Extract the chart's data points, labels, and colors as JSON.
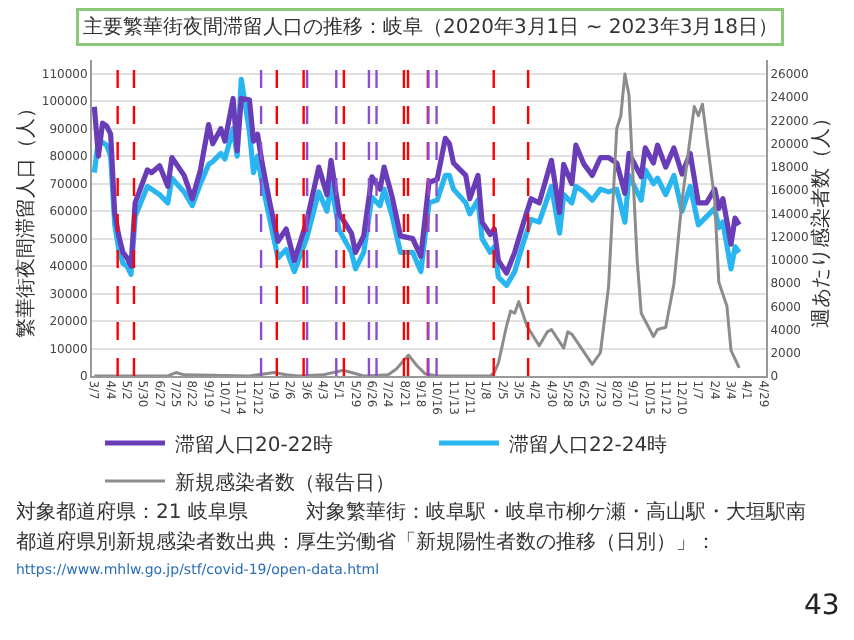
{
  "chart_data": {
    "type": "line",
    "title": "主要繁華街夜間滞留人口の推移：岐阜（2020年3月1日 ~ 2023年3月18日）",
    "ylabel": "繁華街夜間滞留人口（人）",
    "y2label": "週あたり感染者数（人）",
    "x": [
      "2020-03-07",
      "2020-03-14",
      "2020-03-21",
      "2020-03-28",
      "2020-04-04",
      "2020-04-11",
      "2020-04-18",
      "2020-04-25",
      "2020-05-02",
      "2020-05-09",
      "2020-05-16",
      "2020-06-06",
      "2020-06-13",
      "2020-06-27",
      "2020-07-11",
      "2020-07-18",
      "2020-08-08",
      "2020-08-22",
      "2020-09-05",
      "2020-09-19",
      "2020-09-26",
      "2020-10-10",
      "2020-10-17",
      "2020-10-31",
      "2020-11-07",
      "2020-11-14",
      "2020-11-28",
      "2020-12-05",
      "2020-12-12",
      "2020-12-19",
      "2021-01-02",
      "2021-01-16",
      "2021-01-30",
      "2021-02-13",
      "2021-03-06",
      "2021-03-27",
      "2021-04-10",
      "2021-04-17",
      "2021-05-01",
      "2021-05-22",
      "2021-05-29",
      "2021-06-12",
      "2021-06-26",
      "2021-07-10",
      "2021-07-17",
      "2021-07-31",
      "2021-08-14",
      "2021-09-04",
      "2021-09-18",
      "2021-10-02",
      "2021-10-16",
      "2021-10-30",
      "2021-11-06",
      "2021-11-13",
      "2021-12-04",
      "2021-12-11",
      "2021-12-25",
      "2022-01-01",
      "2022-01-15",
      "2022-01-22",
      "2022-01-29",
      "2022-02-12",
      "2022-02-26",
      "2022-03-12",
      "2022-03-26",
      "2022-04-09",
      "2022-04-30",
      "2022-05-14",
      "2022-05-21",
      "2022-06-04",
      "2022-06-11",
      "2022-06-25",
      "2022-07-09",
      "2022-07-23",
      "2022-08-06",
      "2022-08-20",
      "2022-09-03",
      "2022-09-10",
      "2022-10-01",
      "2022-10-08",
      "2022-10-22",
      "2022-10-29",
      "2022-11-12",
      "2022-11-26",
      "2022-12-10",
      "2022-12-24",
      "2023-01-07",
      "2023-01-21",
      "2023-02-04",
      "2023-02-11",
      "2023-02-18",
      "2023-03-04",
      "2023-03-11",
      "2023-03-18"
    ],
    "series": [
      {
        "name": "滞留人口22-24時",
        "color": "#29b6f0",
        "values": [
          74000,
          86000,
          85000,
          84000,
          80000,
          55000,
          46000,
          41000,
          40000,
          37000,
          58000,
          69000,
          68000,
          66000,
          63000,
          72000,
          67000,
          62000,
          70000,
          77000,
          78000,
          81000,
          79000,
          90000,
          80000,
          108000,
          89000,
          74000,
          80000,
          71000,
          57000,
          43000,
          46000,
          38000,
          50000,
          67000,
          60000,
          70000,
          53000,
          45000,
          39000,
          45000,
          65000,
          62000,
          68000,
          58000,
          45000,
          45000,
          38000,
          63000,
          64000,
          73000,
          73000,
          68000,
          63000,
          59000,
          64000,
          50000,
          45000,
          47000,
          36000,
          33000,
          38000,
          48000,
          57000,
          56000,
          69000,
          52000,
          66000,
          63000,
          69000,
          67000,
          64000,
          68000,
          67000,
          68000,
          56000,
          73000,
          64000,
          75000,
          70000,
          72000,
          66000,
          73000,
          60000,
          69000,
          55000,
          58000,
          61000,
          54000,
          56000,
          39000,
          47000,
          45000
        ]
      },
      {
        "name": "滞留人口20-22時",
        "color": "#6a3db8",
        "values": [
          98000,
          80000,
          92000,
          91000,
          88000,
          59000,
          51000,
          45000,
          43000,
          40000,
          63000,
          75000,
          74000,
          76500,
          69000,
          79500,
          73000,
          64500,
          75000,
          91500,
          84500,
          90000,
          85500,
          101000,
          82000,
          101000,
          100500,
          85500,
          88000,
          78500,
          63000,
          49000,
          53500,
          42000,
          56000,
          76000,
          66000,
          78500,
          59000,
          52000,
          45000,
          51000,
          72500,
          68000,
          76000,
          65000,
          51000,
          50000,
          43500,
          70500,
          71500,
          86500,
          84500,
          77500,
          73000,
          64500,
          73000,
          56000,
          51500,
          53500,
          42000,
          37500,
          45000,
          55000,
          64500,
          63000,
          78500,
          59500,
          77000,
          70000,
          84000,
          77000,
          73000,
          79500,
          79500,
          77500,
          66500,
          81000,
          72500,
          83000,
          77500,
          84000,
          76000,
          83000,
          73500,
          81000,
          63000,
          63000,
          68000,
          61000,
          64500,
          48000,
          57500,
          55000
        ]
      },
      {
        "name": "新規感染者数（報告日）",
        "color": "#8c8c8c",
        "axis": "y2",
        "x": [
          "2020-03-07",
          "2020-07-11",
          "2020-07-25",
          "2020-08-08",
          "2020-11-28",
          "2020-12-26",
          "2021-01-09",
          "2021-01-30",
          "2021-02-20",
          "2021-04-03",
          "2021-05-08",
          "2021-06-12",
          "2021-07-24",
          "2021-08-07",
          "2021-08-28",
          "2021-09-11",
          "2021-09-25",
          "2021-10-16",
          "2022-01-15",
          "2022-01-22",
          "2022-01-29",
          "2022-02-12",
          "2022-02-19",
          "2022-02-26",
          "2022-03-05",
          "2022-03-19",
          "2022-04-09",
          "2022-04-23",
          "2022-04-30",
          "2022-05-21",
          "2022-05-28",
          "2022-06-04",
          "2022-07-09",
          "2022-07-23",
          "2022-08-06",
          "2022-08-20",
          "2022-08-27",
          "2022-09-03",
          "2022-09-10",
          "2022-09-24",
          "2022-10-01",
          "2022-10-22",
          "2022-10-29",
          "2022-11-12",
          "2022-11-26",
          "2022-12-10",
          "2022-12-31",
          "2023-01-07",
          "2023-01-14",
          "2023-02-04",
          "2023-02-11",
          "2023-02-25",
          "2023-03-04",
          "2023-03-18"
        ],
        "values": [
          0,
          0,
          300,
          100,
          0,
          200,
          300,
          100,
          0,
          100,
          500,
          0,
          100,
          600,
          1800,
          900,
          200,
          0,
          0,
          300,
          1100,
          4300,
          5600,
          5400,
          6400,
          4300,
          2600,
          3800,
          4000,
          2400,
          3800,
          3600,
          1000,
          2000,
          7700,
          21300,
          22400,
          26000,
          24200,
          10000,
          5400,
          3400,
          4000,
          4200,
          7900,
          15100,
          23200,
          22400,
          23400,
          15100,
          8100,
          6000,
          2200,
          700
        ]
      }
    ],
    "xlim": [
      "2020-03-03",
      "2023-05-03"
    ],
    "xticks": [
      {
        "value": "2020-03-07",
        "label": "3/7"
      },
      {
        "value": "2020-04-04",
        "label": "4/4"
      },
      {
        "value": "2020-05-02",
        "label": "5/2"
      },
      {
        "value": "2020-05-30",
        "label": "5/30"
      },
      {
        "value": "2020-06-27",
        "label": "6/27"
      },
      {
        "value": "2020-07-25",
        "label": "7/25"
      },
      {
        "value": "2020-08-22",
        "label": "8/22"
      },
      {
        "value": "2020-09-19",
        "label": "9/19"
      },
      {
        "value": "2020-10-17",
        "label": "10/17"
      },
      {
        "value": "2020-11-14",
        "label": "11/14"
      },
      {
        "value": "2020-12-12",
        "label": "12/12"
      },
      {
        "value": "2021-01-09",
        "label": "1/9"
      },
      {
        "value": "2021-02-06",
        "label": "2/6"
      },
      {
        "value": "2021-03-06",
        "label": "3/6"
      },
      {
        "value": "2021-04-03",
        "label": "4/3"
      },
      {
        "value": "2021-05-01",
        "label": "5/1"
      },
      {
        "value": "2021-05-29",
        "label": "5/29"
      },
      {
        "value": "2021-06-26",
        "label": "6/26"
      },
      {
        "value": "2021-07-24",
        "label": "7/24"
      },
      {
        "value": "2021-08-21",
        "label": "8/21"
      },
      {
        "value": "2021-09-18",
        "label": "9/18"
      },
      {
        "value": "2021-10-16",
        "label": "10/16"
      },
      {
        "value": "2021-11-13",
        "label": "11/13"
      },
      {
        "value": "2021-12-11",
        "label": "12/11"
      },
      {
        "value": "2022-01-08",
        "label": "1/8"
      },
      {
        "value": "2022-02-05",
        "label": "2/5"
      },
      {
        "value": "2022-03-05",
        "label": "3/5"
      },
      {
        "value": "2022-04-02",
        "label": "4/2"
      },
      {
        "value": "2022-04-30",
        "label": "4/30"
      },
      {
        "value": "2022-05-28",
        "label": "5/28"
      },
      {
        "value": "2022-06-25",
        "label": "6/25"
      },
      {
        "value": "2022-07-23",
        "label": "7/23"
      },
      {
        "value": "2022-08-20",
        "label": "8/20"
      },
      {
        "value": "2022-09-17",
        "label": "9/17"
      },
      {
        "value": "2022-10-15",
        "label": "10/15"
      },
      {
        "value": "2022-11-12",
        "label": "11/12"
      },
      {
        "value": "2022-12-10",
        "label": "12/10"
      },
      {
        "value": "2023-01-07",
        "label": "1/7"
      },
      {
        "value": "2023-02-04",
        "label": "2/4"
      },
      {
        "value": "2023-03-04",
        "label": "3/4"
      },
      {
        "value": "2023-04-01",
        "label": "4/1"
      },
      {
        "value": "2023-04-29",
        "label": "4/29"
      }
    ],
    "ylim": [
      0,
      115000
    ],
    "yticks": [
      0,
      10000,
      20000,
      30000,
      40000,
      50000,
      60000,
      70000,
      80000,
      90000,
      100000,
      110000
    ],
    "y2lim": [
      0,
      27200
    ],
    "y2ticks": [
      0,
      2000,
      4000,
      6000,
      8000,
      10000,
      12000,
      14000,
      16000,
      18000,
      20000,
      22000,
      24000,
      26000
    ],
    "ref_lines": [
      {
        "axis": "x",
        "value": "2020-04-16",
        "color": "#ff0000",
        "line_style": "dashed"
      },
      {
        "axis": "x",
        "value": "2020-05-14",
        "color": "#ff0000",
        "line_style": "dashed"
      },
      {
        "axis": "x",
        "value": "2020-12-18",
        "color": "#8a4fd0",
        "line_style": "dashed"
      },
      {
        "axis": "x",
        "value": "2021-01-14",
        "color": "#ff0000",
        "line_style": "dashed"
      },
      {
        "axis": "x",
        "value": "2021-03-01",
        "color": "#ff0000",
        "line_style": "dashed"
      },
      {
        "axis": "x",
        "value": "2021-03-07",
        "color": "#8a4fd0",
        "line_style": "dashed"
      },
      {
        "axis": "x",
        "value": "2021-04-26",
        "color": "#8a4fd0",
        "line_style": "dashed"
      },
      {
        "axis": "x",
        "value": "2021-05-09",
        "color": "#ff0000",
        "line_style": "dashed"
      },
      {
        "axis": "x",
        "value": "2021-06-21",
        "color": "#8a4fd0",
        "line_style": "dashed"
      },
      {
        "axis": "x",
        "value": "2021-07-04",
        "color": "#8a4fd0",
        "line_style": "dashed"
      },
      {
        "axis": "x",
        "value": "2021-08-20",
        "color": "#ff0000",
        "line_style": "dashed"
      },
      {
        "axis": "x",
        "value": "2021-08-27",
        "color": "#ff0000",
        "line_style": "dashed"
      },
      {
        "axis": "x",
        "value": "2021-09-30",
        "color": "#ff0000",
        "line_style": "dashed"
      },
      {
        "axis": "x",
        "value": "2021-10-01",
        "color": "#8a4fd0",
        "line_style": "dashed"
      },
      {
        "axis": "x",
        "value": "2021-10-15",
        "color": "#8a4fd0",
        "line_style": "dashed"
      },
      {
        "axis": "x",
        "value": "2022-01-21",
        "color": "#ff0000",
        "line_style": "dashed"
      },
      {
        "axis": "x",
        "value": "2022-03-21",
        "color": "#ff0000",
        "line_style": "dashed"
      }
    ],
    "grid": "y",
    "legend": "bottom",
    "annotations": [
      "対象都道府県：21 岐阜県",
      "対象繁華街：岐阜駅・岐阜市柳ケ瀬・高山駅・大垣駅南",
      "都道府県別新規感染者数出典：厚生労働省「新規陽性者数の推移（日別）」：",
      "https://www.mhlw.go.jp/stf/covid-19/open-data.html",
      "43"
    ]
  }
}
